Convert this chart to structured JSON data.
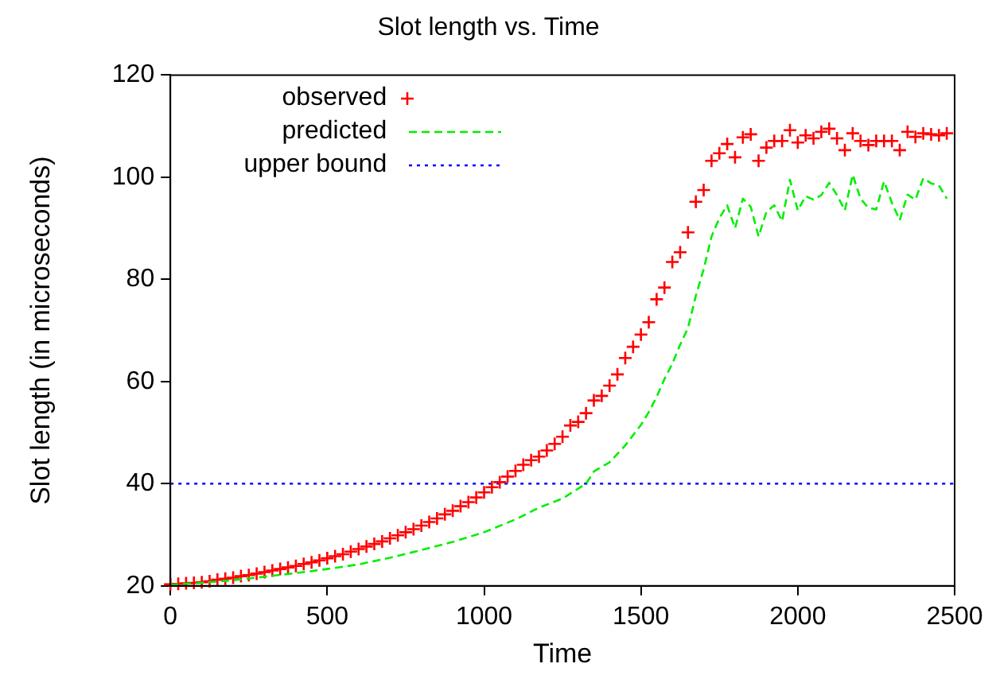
{
  "chart_data": {
    "type": "scatter",
    "title": "Slot length vs. Time",
    "xlabel": "Time",
    "ylabel": "Slot length (in microseconds)",
    "xlim": [
      0,
      2500
    ],
    "xticks": [
      0,
      500,
      1000,
      1500,
      2000,
      2500
    ],
    "ylim": [
      20,
      120
    ],
    "yticks": [
      20,
      40,
      60,
      80,
      100,
      120
    ],
    "grid": false,
    "legend": "top left",
    "series": [
      {
        "name": "observed",
        "type": "scatter",
        "marker": "cross",
        "color": "#ff0000",
        "x": [
          0,
          25,
          50,
          75,
          100,
          125,
          150,
          175,
          200,
          225,
          250,
          275,
          300,
          325,
          350,
          375,
          400,
          425,
          450,
          475,
          500,
          525,
          550,
          575,
          600,
          625,
          650,
          675,
          700,
          725,
          750,
          775,
          800,
          825,
          850,
          875,
          900,
          925,
          950,
          975,
          1000,
          1025,
          1050,
          1075,
          1100,
          1125,
          1150,
          1175,
          1200,
          1225,
          1250,
          1275,
          1300,
          1325,
          1350,
          1375,
          1400,
          1425,
          1450,
          1475,
          1500,
          1525,
          1550,
          1575,
          1600,
          1625,
          1650,
          1675,
          1700,
          1725,
          1750,
          1775,
          1800,
          1825,
          1850,
          1875,
          1900,
          1925,
          1950,
          1975,
          2000,
          2025,
          2050,
          2075,
          2100,
          2125,
          2150,
          2175,
          2200,
          2225,
          2250,
          2275,
          2300,
          2325,
          2350,
          2375,
          2400,
          2425,
          2450,
          2475
        ],
        "values": [
          20.3,
          20.4,
          20.5,
          20.6,
          20.7,
          20.9,
          21.2,
          21.4,
          21.6,
          21.9,
          22.1,
          22.4,
          22.7,
          23.0,
          23.3,
          23.6,
          23.9,
          24.3,
          24.6,
          25.0,
          25.4,
          25.8,
          26.2,
          26.7,
          27.2,
          27.7,
          28.2,
          28.7,
          29.3,
          29.9,
          30.5,
          31.1,
          31.8,
          32.5,
          33.2,
          34.0,
          34.7,
          35.6,
          36.4,
          37.3,
          38.3,
          39.3,
          40.3,
          41.4,
          42.5,
          43.7,
          44.6,
          45.3,
          46.5,
          47.8,
          49.2,
          51.4,
          52.1,
          53.8,
          56.3,
          57.2,
          59.2,
          61.4,
          64.6,
          66.8,
          69.2,
          71.6,
          76.1,
          78.4,
          83.4,
          85.3,
          89.2,
          95.2,
          97.5,
          103.2,
          104.7,
          106.5,
          103.9,
          107.8,
          108.4,
          103.2,
          105.8,
          107.1,
          107.1,
          109.2,
          106.8,
          108.2,
          107.6,
          108.9,
          109.5,
          107.6,
          105.3,
          108.6,
          107.1,
          106.3,
          107.1,
          107.1,
          107.1,
          105.3,
          108.9,
          107.9,
          108.6,
          108.4,
          108.2,
          108.6
        ]
      },
      {
        "name": "predicted",
        "type": "line",
        "marker": "none",
        "line_style": "dashed",
        "color": "#00ee00",
        "x": [
          0,
          100,
          200,
          300,
          400,
          500,
          600,
          700,
          800,
          900,
          1000,
          1100,
          1175,
          1250,
          1325,
          1350,
          1400,
          1450,
          1500,
          1525,
          1550,
          1575,
          1600,
          1625,
          1650,
          1675,
          1700,
          1725,
          1750,
          1775,
          1800,
          1825,
          1850,
          1875,
          1900,
          1925,
          1950,
          1975,
          2000,
          2025,
          2050,
          2075,
          2100,
          2125,
          2150,
          2175,
          2200,
          2225,
          2250,
          2275,
          2300,
          2325,
          2350,
          2375,
          2400,
          2425,
          2450,
          2475
        ],
        "values": [
          20.2,
          20.6,
          21.1,
          21.8,
          22.5,
          23.3,
          24.2,
          25.5,
          27.0,
          28.6,
          30.5,
          33.0,
          35.3,
          37.1,
          40.0,
          42.4,
          44.2,
          47.5,
          51.5,
          54.0,
          57.0,
          60.5,
          63.5,
          67.2,
          70.5,
          76.8,
          82.0,
          88.4,
          92.0,
          94.5,
          90.0,
          95.8,
          94.2,
          88.4,
          93.2,
          94.5,
          91.4,
          99.5,
          93.5,
          96.3,
          95.6,
          96.5,
          98.9,
          96.5,
          93.5,
          100.5,
          95.8,
          94.0,
          93.7,
          99.2,
          95.0,
          91.6,
          96.6,
          95.6,
          99.8,
          98.8,
          98.4,
          95.8
        ]
      }
    ],
    "ref_lines": [
      {
        "axis": "y",
        "value": 40,
        "label": "upper bound",
        "color": "#0000ff",
        "line_style": "dotted"
      }
    ]
  }
}
